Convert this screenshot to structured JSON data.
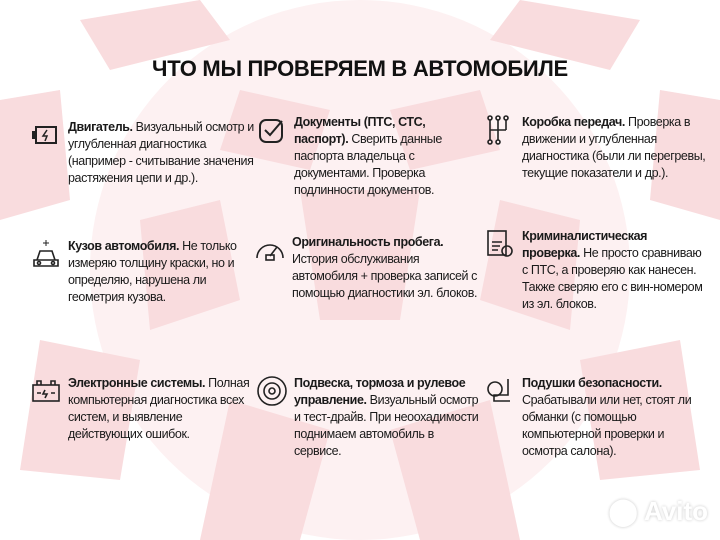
{
  "title": "ЧТО МЫ ПРОВЕРЯЕМ В АВТОМОБИЛЕ",
  "items": [
    {
      "icon": "engine-icon",
      "head": "Двигатель.",
      "text": " Визуальный осмотр и углубленная диагностика (например - считывание значения растяжения цепи и др.)."
    },
    {
      "icon": "checkbox-icon",
      "head": "Документы (ПТС, СТС, паспорт).",
      "text": " Сверить данные паспорта владельца с документами. Проверка подлинности документов."
    },
    {
      "icon": "gearbox-icon",
      "head": "Коробка передач.",
      "text": " Проверка в движении и углубленная диагностика (были ли перегревы, текущие показатели и др.)."
    },
    {
      "icon": "car-body-icon",
      "head": "Кузов автомобиля.",
      "text": " Не только измеряю толщину краски, но и определяю, нарушена ли геометрия кузова."
    },
    {
      "icon": "speedometer-icon",
      "head": "Оригинальность пробега.",
      "text": " История обслуживания автомобиля + проверка записей с помощью диагностики эл. блоков."
    },
    {
      "icon": "forensic-document-icon",
      "head": "Криминалистическая проверка.",
      "text": " Не просто сравниваю с ПТС, а проверяю как нанесен. Также сверяю его с вин-номером из эл. блоков."
    },
    {
      "icon": "battery-icon",
      "head": "Электронные системы.",
      "text": " Полная компьютерная диагностика всех систем, и выявление действующих ошибок."
    },
    {
      "icon": "brake-disc-icon",
      "head": "Подвеска, тормоза и рулевое управление.",
      "text": " Визуальный осмотр и тест-драйв. При неоохадимости поднимаем автомобиль в сервисе."
    },
    {
      "icon": "airbag-icon",
      "head": "Подушки безопасности.",
      "text": " Срабатывали или нет, стоят ли обманки (с помощью компьютерной проверки и осмотра салона)."
    }
  ],
  "watermark": "Avito",
  "colors": {
    "pattern": "#f7d6d8",
    "text": "#1a1a1a"
  }
}
